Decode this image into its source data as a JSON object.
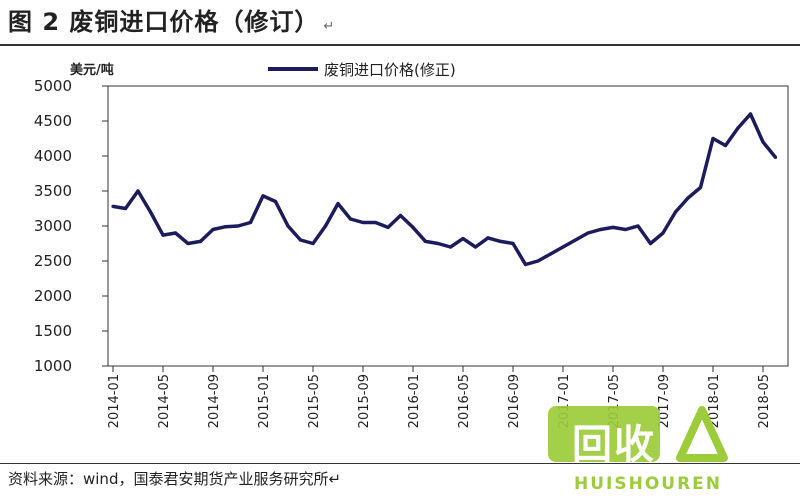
{
  "header": {
    "title": "图 2   废铜进口价格（修订）",
    "return_mark": "↵"
  },
  "source": "资料来源：wind，国泰君安期货产业服务研究所↵",
  "watermark": {
    "name": "回收",
    "text": "HUISHOUREN"
  },
  "colors": {
    "line": "#1c1c5c",
    "watermark_green": "#9ccc3a"
  },
  "chart_data": {
    "type": "line",
    "ylabel": "美元/吨",
    "ylim": [
      1000,
      5000
    ],
    "yticks": [
      1000,
      1500,
      2000,
      2500,
      3000,
      3500,
      4000,
      4500,
      5000
    ],
    "x_tick_labels": [
      "2014-01",
      "2014-05",
      "2014-09",
      "2015-01",
      "2015-05",
      "2015-09",
      "2016-01",
      "2016-05",
      "2016-09",
      "2017-01",
      "2017-05",
      "2017-09",
      "2018-01",
      "2018-05"
    ],
    "grid": false,
    "legend_position": "top",
    "series": [
      {
        "name": "废铜进口价格(修正)",
        "x": [
          "2014-01",
          "2014-02",
          "2014-03",
          "2014-04",
          "2014-05",
          "2014-06",
          "2014-07",
          "2014-08",
          "2014-09",
          "2014-10",
          "2014-11",
          "2014-12",
          "2015-01",
          "2015-02",
          "2015-03",
          "2015-04",
          "2015-05",
          "2015-06",
          "2015-07",
          "2015-08",
          "2015-09",
          "2015-10",
          "2015-11",
          "2015-12",
          "2016-01",
          "2016-02",
          "2016-03",
          "2016-04",
          "2016-05",
          "2016-06",
          "2016-07",
          "2016-08",
          "2016-09",
          "2016-10",
          "2016-11",
          "2016-12",
          "2017-01",
          "2017-02",
          "2017-03",
          "2017-04",
          "2017-05",
          "2017-06",
          "2017-07",
          "2017-08",
          "2017-09",
          "2017-10",
          "2017-11",
          "2017-12",
          "2018-01",
          "2018-02",
          "2018-03",
          "2018-04",
          "2018-05",
          "2018-06"
        ],
        "values": [
          3280,
          3250,
          3500,
          3200,
          2870,
          2900,
          2750,
          2780,
          2950,
          2990,
          3000,
          3050,
          3430,
          3350,
          3000,
          2800,
          2750,
          3000,
          3320,
          3100,
          3050,
          3050,
          2980,
          3150,
          2980,
          2780,
          2750,
          2700,
          2820,
          2700,
          2830,
          2780,
          2750,
          2450,
          2500,
          2600,
          2700,
          2800,
          2900,
          2950,
          2980,
          2950,
          3000,
          2750,
          2900,
          3200,
          3400,
          3550,
          4250,
          4150,
          4400,
          4600,
          4200,
          3980
        ]
      }
    ]
  }
}
